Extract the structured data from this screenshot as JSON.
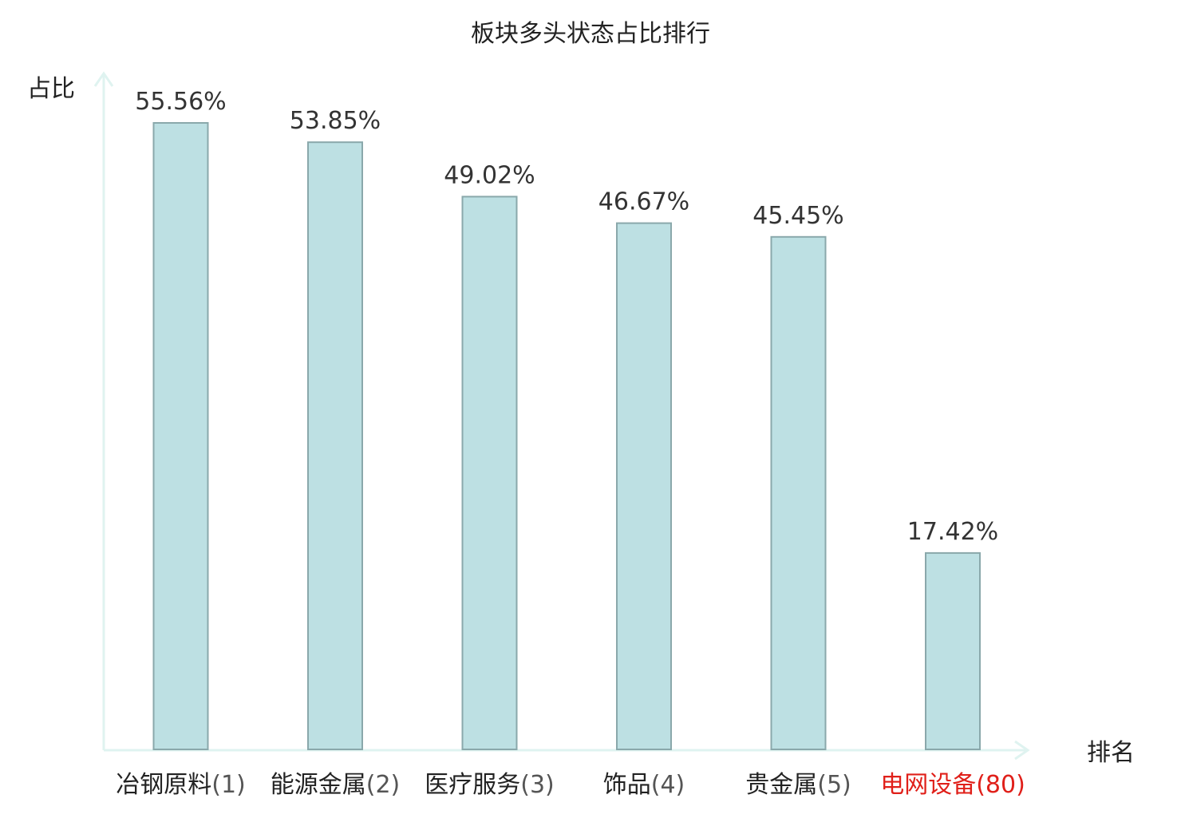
{
  "chart_data": {
    "type": "bar",
    "title": "板块多头状态占比排行",
    "xlabel": "排名",
    "ylabel": "占比",
    "categories": [
      {
        "name": "冶钢原料",
        "rank": "(1)",
        "highlight": false
      },
      {
        "name": "能源金属",
        "rank": "(2)",
        "highlight": false
      },
      {
        "name": "医疗服务",
        "rank": "(3)",
        "highlight": false
      },
      {
        "name": "饰品",
        "rank": "(4)",
        "highlight": false
      },
      {
        "name": "贵金属",
        "rank": "(5)",
        "highlight": false
      },
      {
        "name": "电网设备",
        "rank": "(80)",
        "highlight": true
      }
    ],
    "values": [
      55.56,
      53.85,
      49.02,
      46.67,
      45.45,
      17.42
    ],
    "value_labels": [
      "55.56%",
      "53.85%",
      "49.02%",
      "46.67%",
      "45.45%",
      "17.42%"
    ],
    "ylim": [
      0,
      55.56
    ],
    "grid": false,
    "legend": "none"
  },
  "colors": {
    "bar_fill": "#bde0e3",
    "bar_stroke": "#8aa8ab",
    "axis": "#dff3f0",
    "text": "#222222",
    "rank_text": "#555555",
    "highlight_text": "#e0201a"
  }
}
